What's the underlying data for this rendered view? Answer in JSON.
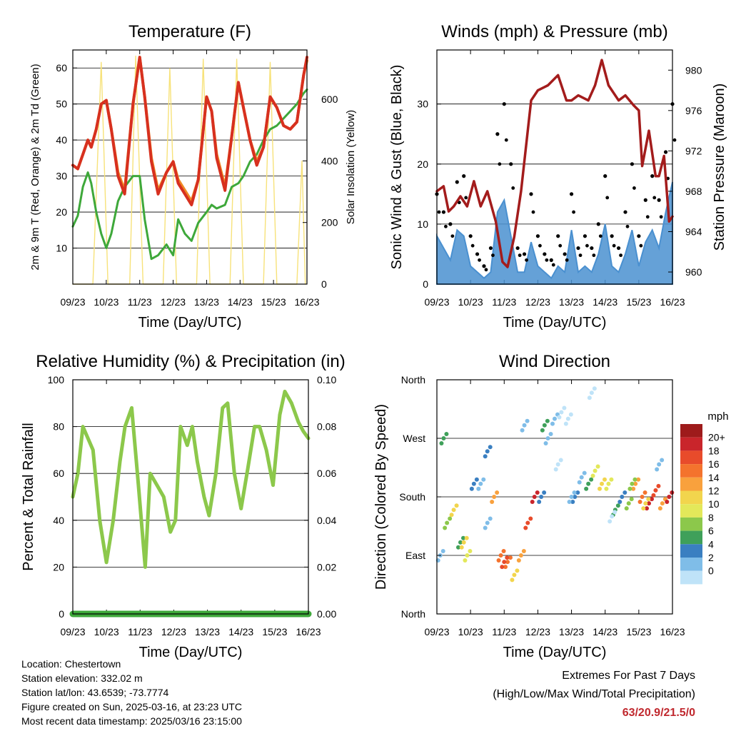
{
  "colors": {
    "temp_2m": "#d7301f",
    "temp_9m": "#f08a24",
    "dewpoint": "#3ea83a",
    "solar": "#f7e27a",
    "wind_speed": "#4a90d0",
    "wind_gust": "#000000",
    "pressure": "#a31c1c",
    "humidity": "#8cc84b",
    "precip": "#3ea83a"
  },
  "wind_colorbar": {
    "title": "mph",
    "labels": [
      "20+",
      "18",
      "16",
      "14",
      "12",
      "10",
      "8",
      "6",
      "4",
      "2",
      "0"
    ],
    "colors": [
      "#9e1b1b",
      "#c9252b",
      "#e84b2b",
      "#f4732d",
      "#f9a13d",
      "#f2d54d",
      "#e3e85a",
      "#8cc84b",
      "#3fa05a",
      "#3a7fc1",
      "#7fbde8",
      "#bfe3f8"
    ]
  },
  "chart_data": [
    {
      "type": "line",
      "title": "Temperature (F)",
      "xlabel": "Time (Day/UTC)",
      "ylabel": "2m & 9m T (Red, Orange) & 2m Td (Green)",
      "y2label": "Solar Insolation (Yellow)",
      "x_ticks": [
        "09/23",
        "10/23",
        "11/23",
        "12/23",
        "13/23",
        "14/23",
        "15/23",
        "16/23"
      ],
      "ylim": [
        0,
        65
      ],
      "y_ticks": [
        10,
        20,
        30,
        40,
        50,
        60
      ],
      "y2lim": [
        0,
        760
      ],
      "y2_ticks": [
        0,
        200,
        400,
        600
      ],
      "grid": true,
      "x": [
        9.0,
        9.15,
        9.3,
        9.45,
        9.55,
        9.7,
        9.85,
        10.0,
        10.15,
        10.35,
        10.55,
        10.8,
        11.0,
        11.15,
        11.35,
        11.55,
        11.8,
        12.0,
        12.15,
        12.35,
        12.55,
        12.75,
        13.0,
        13.15,
        13.3,
        13.55,
        13.75,
        13.95,
        14.1,
        14.3,
        14.5,
        14.7,
        14.9,
        15.1,
        15.3,
        15.5,
        15.7,
        15.9,
        16.0
      ],
      "series": [
        {
          "values": [
            33,
            32,
            36,
            40,
            38,
            43,
            50,
            51,
            43,
            30,
            25,
            50,
            63,
            52,
            34,
            25,
            31,
            34,
            28,
            25,
            22,
            29,
            52,
            48,
            35,
            26,
            41,
            56,
            49,
            40,
            33,
            38,
            52,
            49,
            44,
            43,
            45,
            58,
            63
          ]
        },
        {
          "values": [
            33,
            32,
            36,
            40,
            38,
            43,
            50,
            51,
            43,
            31,
            26,
            50,
            63,
            52,
            35,
            26,
            31,
            34,
            29,
            26,
            23,
            29,
            52,
            48,
            36,
            27,
            41,
            56,
            49,
            40,
            34,
            38,
            52,
            49,
            44,
            43,
            45,
            58,
            62
          ]
        },
        {
          "values": [
            16,
            19,
            27,
            31,
            28,
            20,
            14,
            10,
            14,
            23,
            27,
            30,
            30,
            18,
            7,
            8,
            11,
            8,
            18,
            14,
            12,
            17,
            20,
            22,
            21,
            22,
            27,
            28,
            30,
            34,
            36,
            40,
            43,
            44,
            46,
            48,
            50,
            53,
            54
          ]
        }
      ],
      "solar": {
        "x": [
          9.0,
          9.6,
          9.85,
          10.05,
          10.4,
          10.7,
          10.88,
          11.1,
          11.4,
          11.7,
          11.9,
          12.1,
          12.4,
          12.7,
          12.9,
          13.1,
          13.4,
          13.7,
          13.9,
          14.1,
          14.4,
          14.7,
          14.9,
          15.1,
          15.4,
          15.7,
          15.85,
          15.95
        ],
        "values": [
          0,
          0,
          720,
          0,
          0,
          0,
          740,
          0,
          0,
          0,
          700,
          0,
          0,
          0,
          730,
          0,
          0,
          0,
          730,
          0,
          0,
          0,
          720,
          0,
          0,
          0,
          400,
          0
        ]
      }
    },
    {
      "type": "scatter",
      "title": "Winds (mph) & Pressure (mb)",
      "xlabel": "Time (Day/UTC)",
      "ylabel": "Sonic Wind & Gust (Blue, Black)",
      "y2label": "Station Pressure (Maroon)",
      "x_ticks": [
        "09/23",
        "10/23",
        "11/23",
        "12/23",
        "13/23",
        "14/23",
        "15/23",
        "16/23"
      ],
      "ylim": [
        0,
        39
      ],
      "y_ticks": [
        0,
        10,
        20,
        30
      ],
      "y2lim": [
        958.8,
        982
      ],
      "y2_ticks": [
        960,
        964,
        968,
        972,
        976,
        980
      ],
      "grid": true,
      "x": [
        9.0,
        9.2,
        9.4,
        9.6,
        9.8,
        10.0,
        10.2,
        10.4,
        10.6,
        10.8,
        11.0,
        11.2,
        11.4,
        11.6,
        11.8,
        12.0,
        12.2,
        12.4,
        12.6,
        12.8,
        13.0,
        13.2,
        13.4,
        13.6,
        13.8,
        14.0,
        14.2,
        14.4,
        14.6,
        14.8,
        15.0,
        15.2,
        15.4,
        15.6,
        15.8,
        16.0
      ],
      "series": [
        {
          "name": "",
          "values": [
            8,
            6,
            4,
            9,
            8,
            3,
            2,
            1,
            2,
            12,
            14,
            8,
            2,
            2,
            7,
            3,
            2,
            1,
            3,
            2,
            9,
            2,
            3,
            2,
            5,
            10,
            3,
            2,
            5,
            9,
            3,
            7,
            9,
            6,
            12,
            17
          ]
        },
        {
          "name": "",
          "values": [
            15,
            12,
            10,
            17,
            18,
            8,
            5,
            3,
            6,
            25,
            30,
            20,
            6,
            5,
            15,
            8,
            5,
            4,
            8,
            5,
            15,
            6,
            8,
            6,
            10,
            18,
            8,
            6,
            12,
            20,
            8,
            14,
            18,
            14,
            22,
            30
          ]
        }
      ],
      "pressure": {
        "x": [
          9.0,
          9.2,
          9.35,
          9.5,
          9.7,
          9.9,
          10.1,
          10.3,
          10.5,
          10.75,
          10.95,
          11.1,
          11.3,
          11.5,
          11.8,
          12.0,
          12.3,
          12.6,
          12.85,
          13.0,
          13.2,
          13.5,
          13.7,
          13.9,
          14.1,
          14.4,
          14.6,
          14.85,
          15.0,
          15.1,
          15.3,
          15.5,
          15.6,
          15.75,
          15.9,
          16.0
        ],
        "values": [
          968,
          968.5,
          966,
          966.5,
          967.5,
          966.5,
          969,
          966.5,
          968,
          965,
          961,
          960.5,
          963.5,
          968,
          977,
          978,
          978.5,
          979.5,
          977,
          977,
          977.5,
          977,
          978.5,
          981,
          978.5,
          977,
          977.5,
          976.5,
          976,
          970.5,
          974,
          969.5,
          969.5,
          971.5,
          965,
          965.5
        ]
      }
    },
    {
      "type": "line",
      "title": "Relative Humidity (%) & Precipitation (in)",
      "xlabel": "Time (Day/UTC)",
      "ylabel": "Percent & Total Rainfall",
      "x_ticks": [
        "09/23",
        "10/23",
        "11/23",
        "12/23",
        "13/23",
        "14/23",
        "15/23",
        "16/23"
      ],
      "ylim": [
        0,
        100
      ],
      "y_ticks": [
        0,
        20,
        40,
        60,
        80,
        100
      ],
      "y2lim": [
        0,
        0.1
      ],
      "y2_ticks": [
        "0.00",
        "0.02",
        "0.04",
        "0.06",
        "0.08",
        "0.10"
      ],
      "grid": true,
      "x": [
        9.0,
        9.15,
        9.3,
        9.45,
        9.6,
        9.8,
        10.0,
        10.2,
        10.4,
        10.55,
        10.75,
        10.95,
        11.15,
        11.3,
        11.5,
        11.7,
        11.9,
        12.05,
        12.2,
        12.4,
        12.55,
        12.7,
        12.9,
        13.05,
        13.25,
        13.45,
        13.6,
        13.8,
        14.0,
        14.2,
        14.4,
        14.55,
        14.75,
        14.95,
        15.15,
        15.3,
        15.5,
        15.7,
        15.85,
        16.0
      ],
      "series": [
        {
          "values": [
            50,
            60,
            80,
            75,
            70,
            40,
            22,
            40,
            65,
            80,
            88,
            55,
            20,
            60,
            55,
            50,
            35,
            40,
            80,
            72,
            80,
            65,
            50,
            42,
            60,
            88,
            90,
            60,
            45,
            62,
            80,
            80,
            70,
            55,
            85,
            95,
            90,
            82,
            78,
            75
          ]
        },
        {
          "values": [
            0,
            0,
            0,
            0,
            0,
            0,
            0,
            0,
            0,
            0,
            0,
            0,
            0,
            0,
            0,
            0,
            0,
            0,
            0,
            0,
            0,
            0,
            0,
            0,
            0,
            0,
            0,
            0,
            0,
            0,
            0,
            0,
            0,
            0,
            0,
            0,
            0,
            0,
            0,
            0
          ]
        }
      ]
    },
    {
      "type": "scatter",
      "title": "Wind Direction",
      "xlabel": "Time (Day/UTC)",
      "ylabel": "Direction (Colored By Speed)",
      "x_ticks": [
        "09/23",
        "10/23",
        "11/23",
        "12/23",
        "13/23",
        "14/23",
        "15/23",
        "16/23"
      ],
      "y_ticks": [
        "North",
        "West",
        "South",
        "East",
        "North"
      ],
      "ylim": [
        0,
        360
      ],
      "grid": true,
      "x": [
        9.1,
        9.3,
        9.5,
        9.7,
        9.9,
        10.1,
        10.3,
        10.5,
        10.7,
        10.9,
        11.1,
        11.3,
        11.5,
        11.7,
        11.9,
        12.1,
        12.3,
        12.5,
        12.7,
        12.9,
        13.1,
        13.3,
        13.5,
        13.7,
        13.9,
        14.1,
        14.3,
        14.5,
        14.7,
        14.9,
        15.1,
        15.3,
        15.5,
        15.7,
        15.9,
        9.2,
        9.8,
        10.5,
        11.0,
        11.6,
        12.2,
        12.6,
        13.0,
        13.6,
        14.2,
        14.8,
        15.2,
        15.6
      ],
      "y": [
        90,
        140,
        160,
        110,
        90,
        200,
        200,
        140,
        180,
        90,
        80,
        60,
        90,
        140,
        180,
        180,
        270,
        300,
        310,
        300,
        180,
        210,
        200,
        220,
        200,
        200,
        160,
        180,
        170,
        200,
        180,
        170,
        190,
        170,
        180,
        270,
        110,
        250,
        80,
        290,
        290,
        230,
        180,
        340,
        150,
        200,
        170,
        230
      ],
      "speed": [
        3,
        8,
        12,
        7,
        10,
        4,
        2,
        3,
        14,
        16,
        16,
        12,
        14,
        18,
        20,
        4,
        2,
        2,
        1,
        1,
        5,
        3,
        6,
        10,
        12,
        10,
        6,
        4,
        8,
        14,
        16,
        20,
        18,
        14,
        20,
        6,
        12,
        4,
        18,
        3,
        6,
        1,
        2,
        1,
        1,
        8,
        12,
        3
      ]
    }
  ],
  "location_info": {
    "location": "Location: Chestertown",
    "elevation": "Station elevation: 332.02 m",
    "latlon": "Station lat/lon: 43.6539; -73.7774",
    "created": "Figure created on Sun, 2025-03-16, at 23:23 UTC",
    "timestamp": "Most recent data timestamp: 2025/03/16 23:15:00"
  },
  "extremes": {
    "title": "Extremes For Past 7 Days",
    "subtitle": "(High/Low/Max Wind/Total Precipitation)",
    "values": "63/20.9/21.5/0"
  }
}
